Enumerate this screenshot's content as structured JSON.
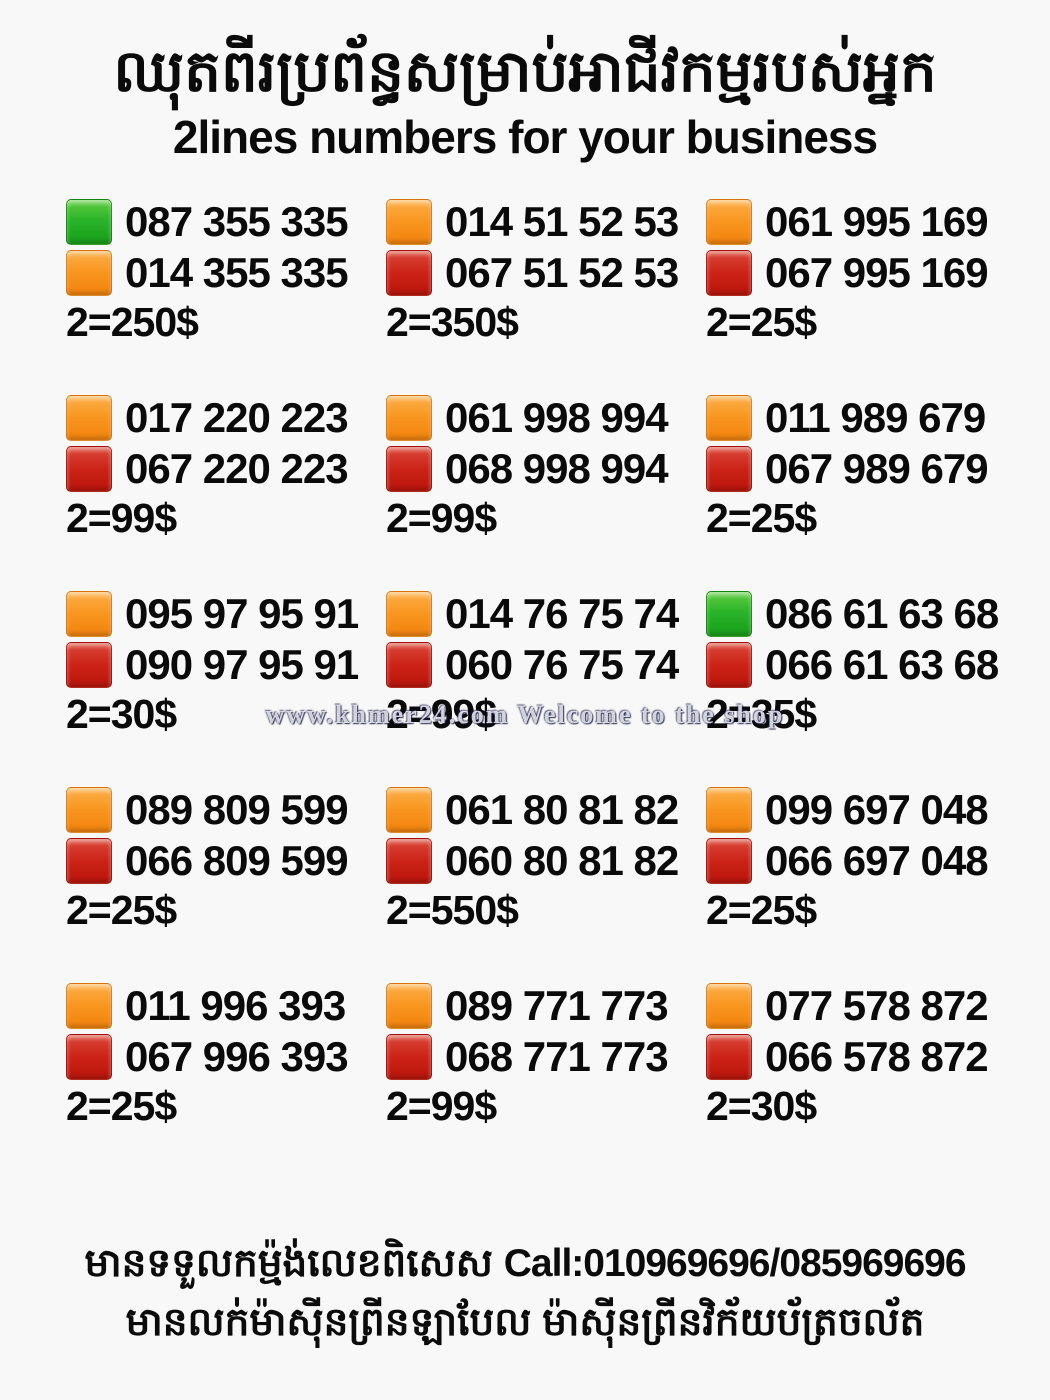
{
  "title": {
    "khmer": "ឈុតពីរប្រព័ន្ធសម្រាប់អាជីវកម្មរបស់អ្នក",
    "english": "2lines numbers for your business"
  },
  "colors": {
    "green": "#2ab42a",
    "orange": "#f8941d",
    "red": "#cc2318",
    "background": "#f8f8f8",
    "text": "#0a0a0a"
  },
  "watermark": "www.khmer24.com Welcome to the shop",
  "grid": {
    "cells": [
      {
        "lines": [
          {
            "color": "green",
            "number": "087 355 335"
          },
          {
            "color": "orange",
            "number": "014 355 335"
          }
        ],
        "price": "2=250$"
      },
      {
        "lines": [
          {
            "color": "orange",
            "number": "014 51 52 53"
          },
          {
            "color": "red",
            "number": "067 51 52 53"
          }
        ],
        "price": "2=350$"
      },
      {
        "lines": [
          {
            "color": "orange",
            "number": "061 995 169"
          },
          {
            "color": "red",
            "number": "067 995 169"
          }
        ],
        "price": "2=25$"
      },
      {
        "lines": [
          {
            "color": "orange",
            "number": "017 220 223"
          },
          {
            "color": "red",
            "number": "067 220 223"
          }
        ],
        "price": "2=99$"
      },
      {
        "lines": [
          {
            "color": "orange",
            "number": "061 998 994"
          },
          {
            "color": "red",
            "number": "068 998 994"
          }
        ],
        "price": "2=99$"
      },
      {
        "lines": [
          {
            "color": "orange",
            "number": "011 989 679"
          },
          {
            "color": "red",
            "number": "067 989 679"
          }
        ],
        "price": "2=25$"
      },
      {
        "lines": [
          {
            "color": "orange",
            "number": "095 97 95 91"
          },
          {
            "color": "red",
            "number": "090 97 95 91"
          }
        ],
        "price": "2=30$"
      },
      {
        "lines": [
          {
            "color": "orange",
            "number": "014 76 75 74"
          },
          {
            "color": "red",
            "number": "060 76 75 74"
          }
        ],
        "price": "2=99$"
      },
      {
        "lines": [
          {
            "color": "green",
            "number": "086 61 63 68"
          },
          {
            "color": "red",
            "number": "066 61 63 68"
          }
        ],
        "price": "2=35$"
      },
      {
        "lines": [
          {
            "color": "orange",
            "number": "089 809 599"
          },
          {
            "color": "red",
            "number": "066 809 599"
          }
        ],
        "price": "2=25$"
      },
      {
        "lines": [
          {
            "color": "orange",
            "number": "061 80 81 82"
          },
          {
            "color": "red",
            "number": "060 80 81 82"
          }
        ],
        "price": "2=550$"
      },
      {
        "lines": [
          {
            "color": "orange",
            "number": "099 697 048"
          },
          {
            "color": "red",
            "number": "066 697 048"
          }
        ],
        "price": "2=25$"
      },
      {
        "lines": [
          {
            "color": "orange",
            "number": "011 996 393"
          },
          {
            "color": "red",
            "number": "067 996 393"
          }
        ],
        "price": "2=25$"
      },
      {
        "lines": [
          {
            "color": "orange",
            "number": "089 771 773"
          },
          {
            "color": "red",
            "number": "068 771 773"
          }
        ],
        "price": "2=99$"
      },
      {
        "lines": [
          {
            "color": "orange",
            "number": "077 578 872"
          },
          {
            "color": "red",
            "number": "066 578 872"
          }
        ],
        "price": "2=30$"
      }
    ]
  },
  "footer": {
    "line1_khmer": "មានទទួលកម្ម៉ង់លេខពិសេស ",
    "line1_call": "Call:010969696/085969696",
    "line2_khmer": "មានលក់ម៉ាស៊ីនព្រីនឡាបែល ម៉ាស៊ីនព្រីនវិក័យប័ត្រចល័ត"
  }
}
